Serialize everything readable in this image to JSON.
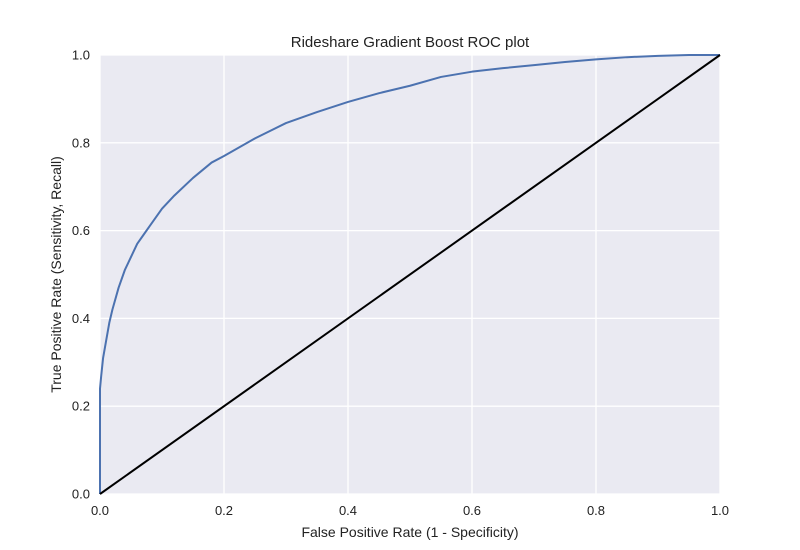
{
  "chart_data": {
    "type": "line",
    "title": "Rideshare Gradient Boost ROC plot",
    "xlabel": "False Positive Rate (1 - Specificity)",
    "ylabel": "True Positive Rate (Sensitivity, Recall)",
    "xlim": [
      0.0,
      1.0
    ],
    "ylim": [
      0.0,
      1.0
    ],
    "xticks": [
      "0.0",
      "0.2",
      "0.4",
      "0.6",
      "0.8",
      "1.0"
    ],
    "yticks": [
      "0.0",
      "0.2",
      "0.4",
      "0.6",
      "0.8",
      "1.0"
    ],
    "grid": true,
    "legend": "none",
    "background_color": "#eaeaf2",
    "series": [
      {
        "color": "#4c72b0",
        "x": [
          0.0,
          0.0,
          0.002,
          0.005,
          0.01,
          0.015,
          0.02,
          0.03,
          0.04,
          0.05,
          0.06,
          0.07,
          0.08,
          0.09,
          0.1,
          0.12,
          0.15,
          0.18,
          0.2,
          0.25,
          0.3,
          0.35,
          0.4,
          0.45,
          0.5,
          0.55,
          0.6,
          0.65,
          0.7,
          0.75,
          0.8,
          0.85,
          0.9,
          0.95,
          1.0
        ],
        "y": [
          0.0,
          0.24,
          0.27,
          0.31,
          0.35,
          0.39,
          0.42,
          0.47,
          0.51,
          0.54,
          0.57,
          0.59,
          0.61,
          0.63,
          0.65,
          0.68,
          0.72,
          0.755,
          0.77,
          0.81,
          0.845,
          0.87,
          0.893,
          0.913,
          0.93,
          0.95,
          0.962,
          0.97,
          0.977,
          0.984,
          0.99,
          0.995,
          0.998,
          1.0,
          1.0
        ]
      },
      {
        "color": "#000000",
        "x": [
          0.0,
          1.0
        ],
        "y": [
          0.0,
          1.0
        ]
      }
    ]
  }
}
